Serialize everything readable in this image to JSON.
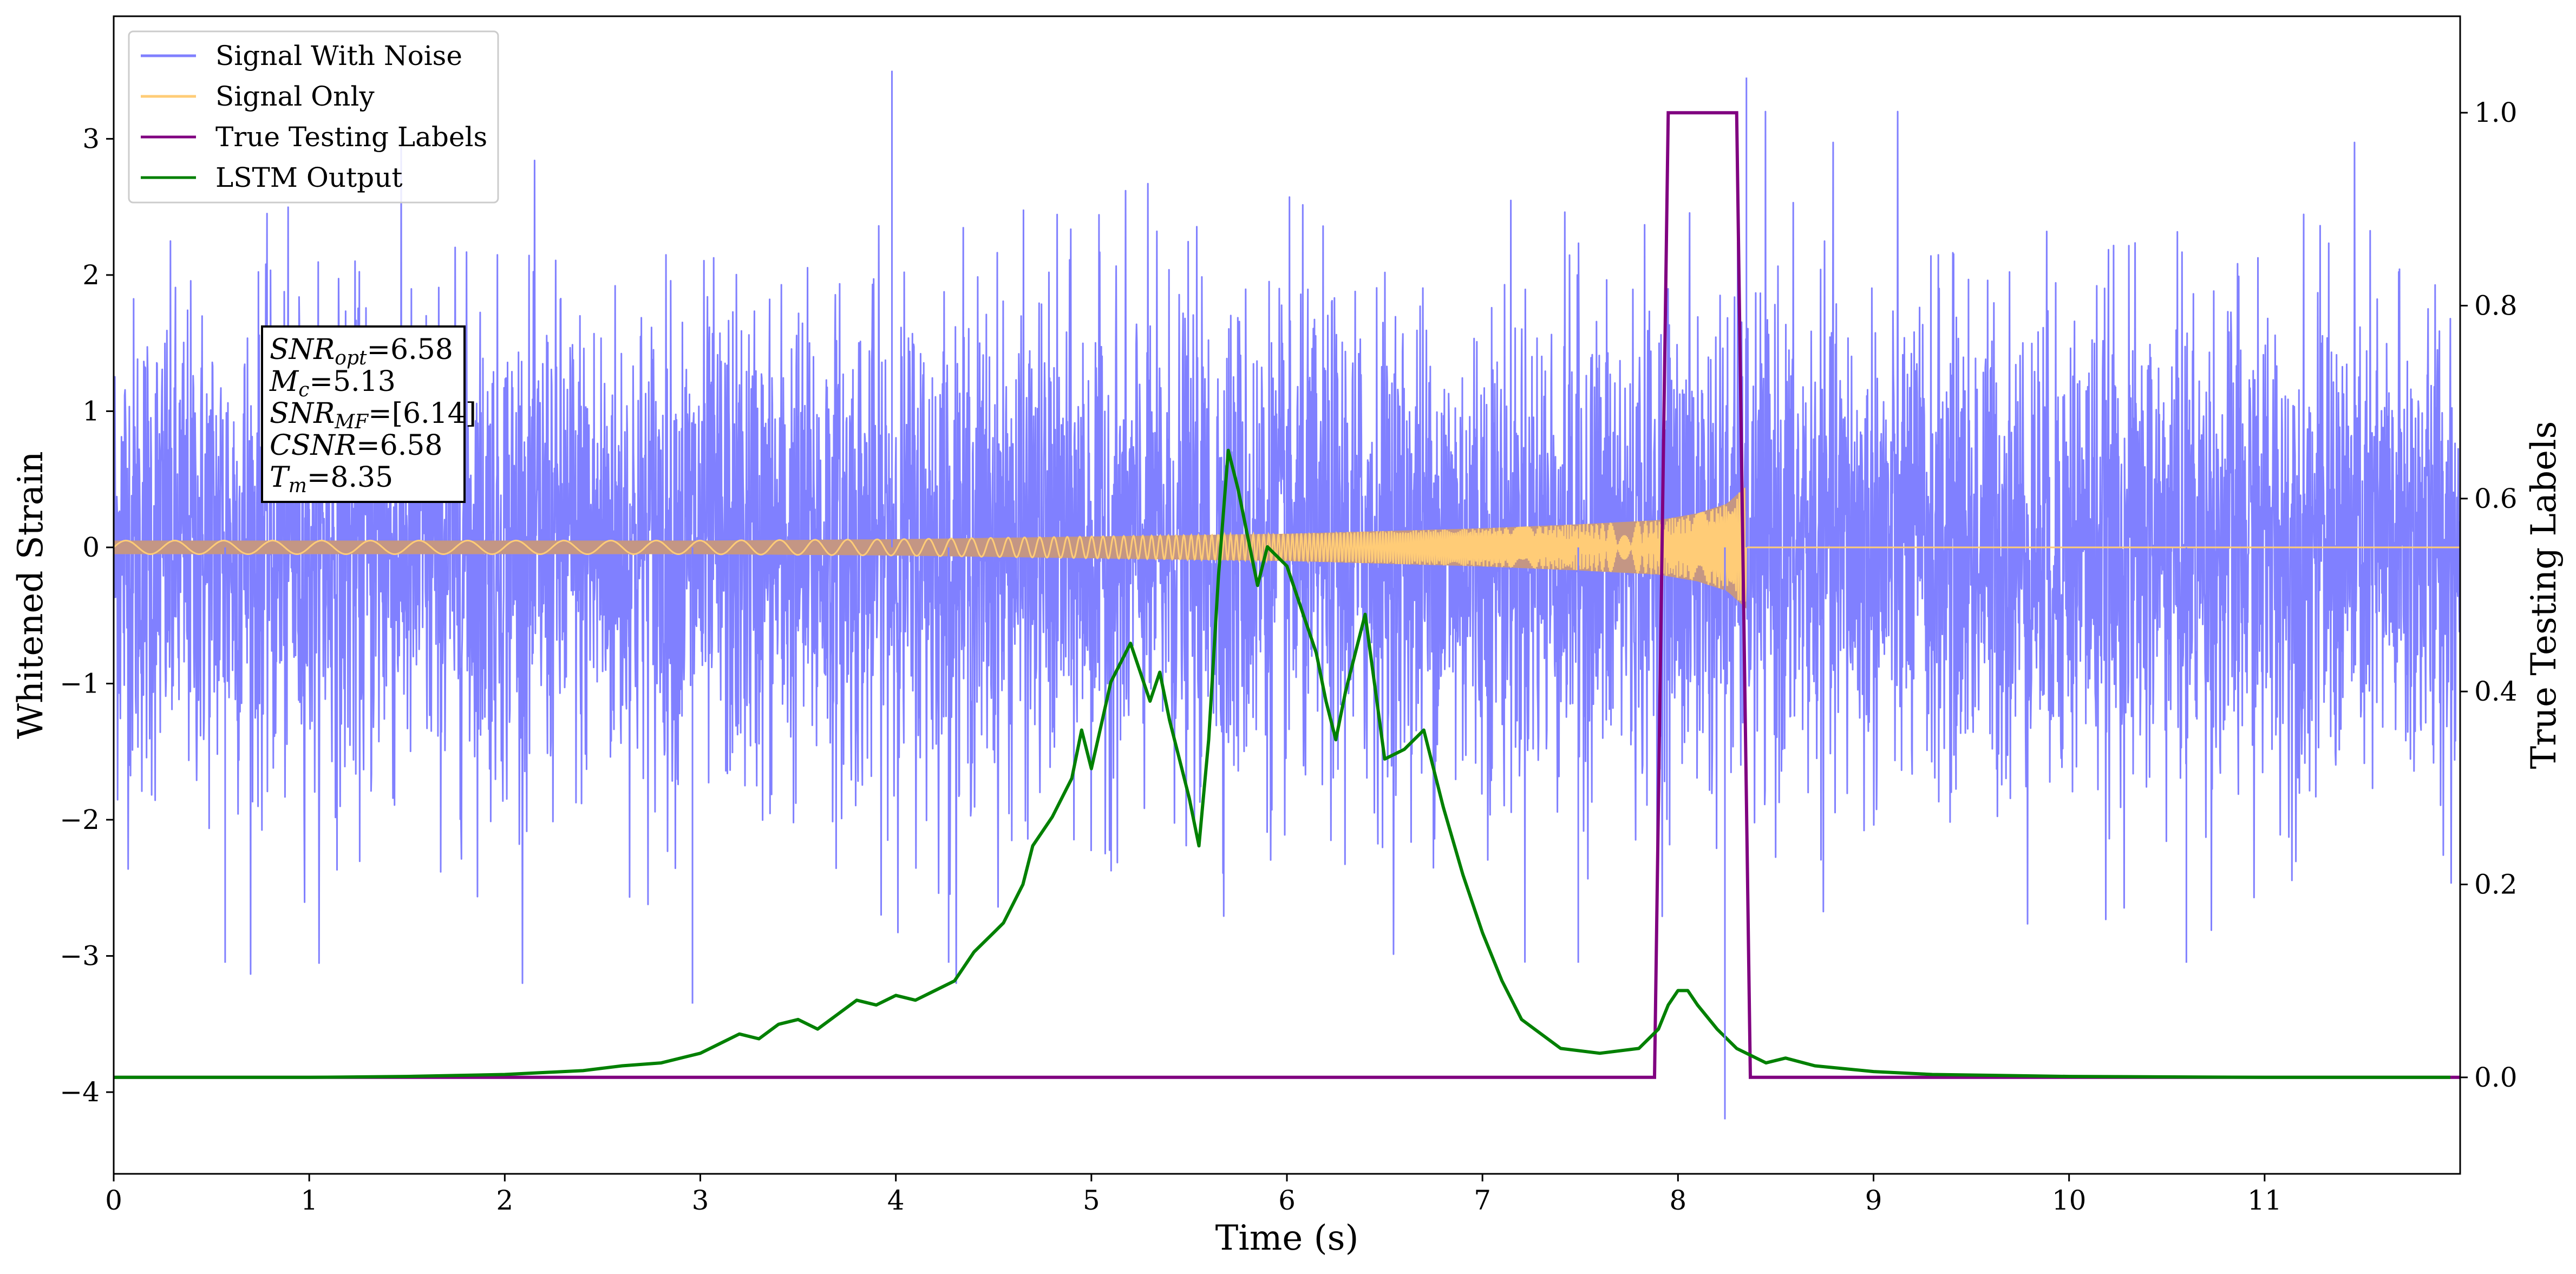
{
  "chart_data": {
    "type": "line",
    "xlabel": "Time (s)",
    "ylabel": "Whitened Strain",
    "y2label": "True Testing Labels",
    "xlim": [
      0,
      12
    ],
    "ylim": [
      -4.6,
      3.9
    ],
    "y2lim": [
      -0.1,
      1.1
    ],
    "xticks": [
      0,
      1,
      2,
      3,
      4,
      5,
      6,
      7,
      8,
      9,
      10,
      11
    ],
    "yticks": [
      -4,
      -3,
      -2,
      -1,
      0,
      1,
      2,
      3
    ],
    "y2ticks": [
      "0.0",
      "0.2",
      "0.4",
      "0.6",
      "0.8",
      "1.0"
    ],
    "legend_position": "top-left",
    "grid": false,
    "series": [
      {
        "name": "Signal With Noise",
        "axis": "left",
        "color": "#8080ff",
        "style": "dense random noise, roughly between -2.5 and 2.5 with occasional spikes to about +3.5 and -4.2",
        "extremes": [
          [
            3.98,
            3.5
          ],
          [
            8.35,
            3.45
          ],
          [
            8.24,
            -4.2
          ],
          [
            0.57,
            -3.05
          ],
          [
            2.96,
            -3.35
          ],
          [
            4.27,
            -3.05
          ],
          [
            10.6,
            -3.05
          ],
          [
            7.49,
            -3.05
          ]
        ]
      },
      {
        "name": "Signal Only",
        "axis": "left",
        "color": "#ffcc77",
        "fill_color": "#c49684",
        "style": "chirp with growing amplitude, merging and ending at t = 8.35 s",
        "amplitude_envelope": {
          "x": [
            0,
            1,
            2,
            3,
            4,
            5,
            6,
            7,
            7.5,
            7.9,
            8.1,
            8.25,
            8.35
          ],
          "y": [
            0.05,
            0.05,
            0.05,
            0.05,
            0.06,
            0.08,
            0.1,
            0.14,
            0.17,
            0.2,
            0.25,
            0.32,
            0.45
          ]
        },
        "end_time": 8.35
      },
      {
        "name": "True Testing Labels",
        "axis": "right",
        "color": "#800080",
        "x": [
          0,
          7.88,
          7.95,
          8.3,
          8.37,
          12
        ],
        "y": [
          0,
          0,
          1,
          1,
          0,
          0
        ]
      },
      {
        "name": "LSTM Output",
        "axis": "right",
        "color": "#008000",
        "x": [
          0,
          1,
          1.5,
          2,
          2.2,
          2.4,
          2.6,
          2.8,
          3.0,
          3.1,
          3.2,
          3.3,
          3.4,
          3.5,
          3.6,
          3.7,
          3.8,
          3.9,
          4.0,
          4.1,
          4.2,
          4.3,
          4.4,
          4.5,
          4.55,
          4.65,
          4.7,
          4.8,
          4.9,
          4.95,
          5.0,
          5.1,
          5.2,
          5.3,
          5.35,
          5.4,
          5.45,
          5.5,
          5.55,
          5.6,
          5.65,
          5.7,
          5.75,
          5.8,
          5.85,
          5.9,
          6.0,
          6.1,
          6.15,
          6.2,
          6.25,
          6.3,
          6.4,
          6.5,
          6.6,
          6.7,
          6.8,
          6.9,
          7.0,
          7.1,
          7.2,
          7.4,
          7.6,
          7.8,
          7.9,
          7.95,
          8.0,
          8.05,
          8.1,
          8.2,
          8.3,
          8.45,
          8.55,
          8.7,
          9.0,
          9.3,
          10,
          11,
          11.95
        ],
        "y": [
          0,
          0,
          0.001,
          0.003,
          0.005,
          0.007,
          0.012,
          0.015,
          0.025,
          0.035,
          0.045,
          0.04,
          0.055,
          0.06,
          0.05,
          0.065,
          0.08,
          0.075,
          0.085,
          0.08,
          0.09,
          0.1,
          0.13,
          0.15,
          0.16,
          0.2,
          0.24,
          0.27,
          0.31,
          0.36,
          0.32,
          0.41,
          0.45,
          0.39,
          0.42,
          0.37,
          0.33,
          0.29,
          0.24,
          0.35,
          0.52,
          0.65,
          0.61,
          0.56,
          0.51,
          0.55,
          0.53,
          0.47,
          0.44,
          0.39,
          0.35,
          0.4,
          0.48,
          0.33,
          0.34,
          0.36,
          0.28,
          0.21,
          0.15,
          0.1,
          0.06,
          0.03,
          0.025,
          0.03,
          0.05,
          0.075,
          0.09,
          0.09,
          0.075,
          0.05,
          0.03,
          0.015,
          0.02,
          0.012,
          0.006,
          0.003,
          0.001,
          0,
          0
        ]
      }
    ]
  },
  "legend": [
    {
      "label": "Signal With Noise",
      "color": "#8080ff"
    },
    {
      "label": "Signal Only",
      "color": "#ffcc77"
    },
    {
      "label": "True Testing Labels",
      "color": "#800080"
    },
    {
      "label": "LSTM Output",
      "color": "#008000"
    }
  ],
  "info_box": {
    "snr_opt": {
      "symbol": "SNR",
      "sub": "opt",
      "value": "=6.58"
    },
    "mc": {
      "symbol": "M",
      "sub": "c",
      "value": "=5.13"
    },
    "snr_mf": {
      "symbol": "SNR",
      "sub": "MF",
      "value": "=[6.14]"
    },
    "csnr": {
      "symbol": "CSNR",
      "value": "=6.58"
    },
    "tm": {
      "symbol": "T",
      "sub": "m",
      "value": "=8.35"
    }
  }
}
